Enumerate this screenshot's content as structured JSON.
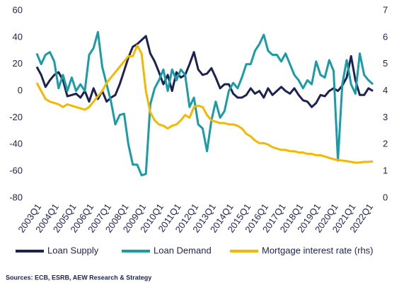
{
  "chart_data": {
    "type": "line",
    "categories": [
      "2003Q1",
      null,
      null,
      null,
      "2004Q1",
      null,
      null,
      null,
      "2005Q1",
      null,
      null,
      null,
      "2006Q1",
      null,
      null,
      null,
      "2007Q1",
      null,
      null,
      null,
      "2008Q1",
      null,
      null,
      null,
      "2009Q1",
      null,
      null,
      null,
      "2010Q1",
      null,
      null,
      null,
      "2011Q1",
      null,
      null,
      null,
      "2012Q1",
      null,
      null,
      null,
      "2013Q1",
      null,
      null,
      null,
      "2014Q1",
      null,
      null,
      null,
      "2015Q1",
      null,
      null,
      null,
      "2016Q1",
      null,
      null,
      null,
      "2017Q1",
      null,
      null,
      null,
      "2018Q1",
      null,
      null,
      null,
      "2019Q1",
      null,
      null,
      null,
      "2020Q1",
      null,
      null,
      null,
      "2021Q1",
      null,
      null,
      null,
      "2022Q1",
      null
    ],
    "series": [
      {
        "name": "Loan Supply",
        "color": "#1d2350",
        "values": [
          18,
          12,
          3,
          8,
          12,
          14,
          8,
          -4,
          -3,
          -2,
          -5,
          0,
          -8,
          2,
          -6,
          0,
          -8,
          -5,
          -3,
          5,
          15,
          25,
          33,
          35,
          38,
          41,
          28,
          22,
          14,
          5,
          12,
          0,
          14,
          10,
          12,
          20,
          29,
          16,
          12,
          13,
          17,
          10,
          2,
          5,
          5,
          -2,
          -5,
          -5,
          -3,
          2,
          -2,
          0,
          -5,
          2,
          -3,
          0,
          3,
          0,
          -2,
          2,
          -3,
          -7,
          -8,
          -12,
          -9,
          -3,
          -4,
          0,
          2,
          0,
          4,
          10,
          26,
          8,
          -3,
          -3,
          2,
          0
        ]
      },
      {
        "name": "Loan Demand",
        "color": "#1a9ba5",
        "values": [
          28,
          20,
          27,
          29,
          22,
          2,
          12,
          0,
          10,
          0,
          5,
          0,
          27,
          32,
          44,
          18,
          5,
          -8,
          -25,
          -18,
          -17,
          -40,
          -55,
          -55,
          -63,
          -62,
          -10,
          2,
          8,
          16,
          0,
          16,
          8,
          16,
          12,
          -12,
          -5,
          -25,
          -28,
          -45,
          -22,
          -8,
          -20,
          -15,
          0,
          6,
          2,
          10,
          20,
          20,
          30,
          35,
          42,
          30,
          27,
          27,
          22,
          28,
          20,
          12,
          8,
          2,
          8,
          5,
          22,
          12,
          10,
          23,
          15,
          -52,
          5,
          23,
          5,
          -2,
          28,
          12,
          8,
          5
        ]
      },
      {
        "name": "Mortgage interest rate (rhs)",
        "color": "#f5b800",
        "axis": "y2",
        "values": [
          4.3,
          4.0,
          3.7,
          3.6,
          3.55,
          3.5,
          3.4,
          3.5,
          3.45,
          3.4,
          3.35,
          3.3,
          3.4,
          3.6,
          3.8,
          4.0,
          4.3,
          4.5,
          4.7,
          4.9,
          5.1,
          5.3,
          5.3,
          5.7,
          5.4,
          4.0,
          3.2,
          2.9,
          2.75,
          2.7,
          2.6,
          2.7,
          2.75,
          2.9,
          3.1,
          3.0,
          3.4,
          3.45,
          3.4,
          3.1,
          2.9,
          2.85,
          2.8,
          2.8,
          2.75,
          2.75,
          2.7,
          2.6,
          2.4,
          2.3,
          2.15,
          2.05,
          2.05,
          2.0,
          1.9,
          1.85,
          1.8,
          1.8,
          1.75,
          1.75,
          1.7,
          1.7,
          1.65,
          1.65,
          1.6,
          1.6,
          1.55,
          1.5,
          1.45,
          1.42,
          1.4,
          1.38,
          1.35,
          1.32,
          1.33,
          1.35,
          1.35,
          1.37
        ]
      }
    ],
    "ylim": [
      -80,
      60
    ],
    "yticks": [
      -80,
      -60,
      -40,
      -20,
      0,
      20,
      40,
      60
    ],
    "y2lim": [
      0,
      7
    ],
    "y2ticks": [
      0,
      1,
      2,
      3,
      4,
      5,
      6,
      7
    ],
    "grid": false,
    "legend": "bottom",
    "source": "Sources: ECB, ESRB, AEW Research & Strategy"
  }
}
